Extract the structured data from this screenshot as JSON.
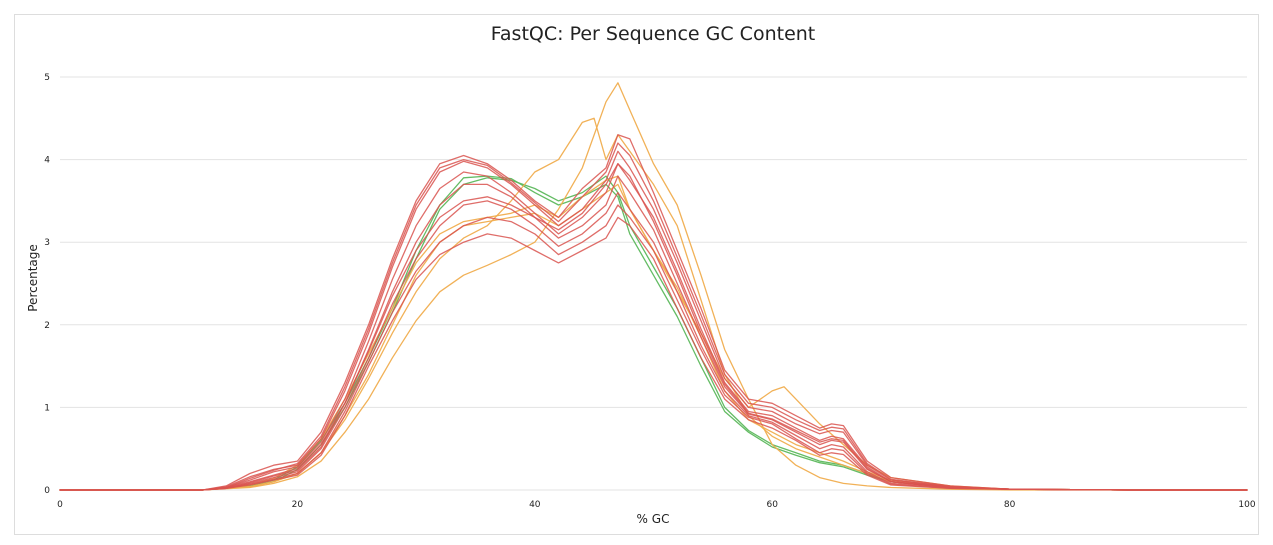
{
  "chart_data": {
    "type": "line",
    "title": "FastQC: Per Sequence GC Content",
    "xlabel": "% GC",
    "ylabel": "Percentage",
    "xlim": [
      0,
      100
    ],
    "ylim": [
      0,
      5
    ],
    "xticks": [
      0,
      20,
      40,
      60,
      80,
      100
    ],
    "yticks": [
      0,
      1,
      2,
      3,
      4,
      5
    ],
    "grid": true,
    "status_colors": {
      "pass": "#5cb85c",
      "warn": "#f0ad4e",
      "fail": "#d9534f"
    },
    "series": [
      {
        "status": "pass",
        "x": [
          0,
          12,
          16,
          18,
          20,
          22,
          24,
          26,
          28,
          30,
          32,
          34,
          36,
          38,
          40,
          42,
          44,
          46,
          47,
          48,
          50,
          52,
          54,
          56,
          58,
          60,
          62,
          64,
          66,
          68,
          70,
          75,
          80,
          90,
          100
        ],
        "values": [
          0,
          0,
          0.06,
          0.12,
          0.28,
          0.6,
          1.05,
          1.6,
          2.2,
          2.9,
          3.45,
          3.78,
          3.8,
          3.77,
          3.6,
          3.45,
          3.55,
          3.7,
          3.55,
          3.1,
          2.6,
          2.1,
          1.5,
          0.95,
          0.7,
          0.52,
          0.42,
          0.33,
          0.28,
          0.18,
          0.1,
          0.03,
          0.01,
          0,
          0
        ]
      },
      {
        "status": "pass",
        "x": [
          0,
          12,
          16,
          18,
          20,
          22,
          24,
          26,
          28,
          30,
          32,
          34,
          36,
          38,
          40,
          42,
          44,
          46,
          47,
          48,
          50,
          52,
          54,
          56,
          58,
          60,
          62,
          64,
          66,
          68,
          70,
          75,
          80,
          90,
          100
        ],
        "values": [
          0,
          0,
          0.05,
          0.1,
          0.25,
          0.55,
          1.0,
          1.55,
          2.15,
          2.8,
          3.4,
          3.7,
          3.78,
          3.75,
          3.65,
          3.5,
          3.6,
          3.8,
          3.6,
          3.2,
          2.7,
          2.2,
          1.6,
          1.0,
          0.72,
          0.55,
          0.45,
          0.35,
          0.3,
          0.2,
          0.1,
          0.03,
          0.01,
          0,
          0
        ]
      },
      {
        "status": "warn",
        "x": [
          0,
          12,
          16,
          18,
          20,
          22,
          24,
          26,
          28,
          30,
          32,
          34,
          36,
          38,
          40,
          42,
          44,
          45,
          46,
          47,
          48,
          50,
          52,
          54,
          56,
          58,
          60,
          62,
          64,
          66,
          68,
          70,
          75,
          80,
          90,
          100
        ],
        "values": [
          0,
          0,
          0.04,
          0.1,
          0.2,
          0.45,
          0.85,
          1.35,
          1.9,
          2.4,
          2.8,
          3.05,
          3.2,
          3.5,
          3.85,
          4.0,
          4.45,
          4.5,
          4.0,
          4.3,
          4.1,
          3.7,
          3.2,
          2.3,
          1.4,
          0.9,
          0.65,
          0.5,
          0.4,
          0.3,
          0.2,
          0.1,
          0.03,
          0.01,
          0,
          0
        ]
      },
      {
        "status": "warn",
        "x": [
          0,
          12,
          16,
          18,
          20,
          22,
          24,
          26,
          28,
          30,
          32,
          34,
          36,
          38,
          40,
          42,
          44,
          46,
          47,
          48,
          50,
          52,
          54,
          56,
          58,
          60,
          62,
          64,
          66,
          68,
          70,
          75,
          80,
          90,
          100
        ],
        "values": [
          0,
          0,
          0.03,
          0.08,
          0.16,
          0.35,
          0.7,
          1.1,
          1.6,
          2.05,
          2.4,
          2.6,
          2.72,
          2.85,
          3.0,
          3.4,
          3.9,
          4.7,
          4.93,
          4.6,
          3.95,
          3.45,
          2.6,
          1.7,
          1.1,
          0.55,
          0.3,
          0.15,
          0.08,
          0.05,
          0.03,
          0.01,
          0,
          0,
          0
        ]
      },
      {
        "status": "warn",
        "x": [
          0,
          12,
          16,
          18,
          20,
          22,
          24,
          26,
          28,
          30,
          32,
          34,
          36,
          38,
          40,
          42,
          44,
          46,
          47,
          48,
          50,
          52,
          54,
          56,
          58,
          60,
          61,
          62,
          64,
          66,
          68,
          70,
          75,
          80,
          90,
          100
        ],
        "values": [
          0,
          0,
          0.06,
          0.14,
          0.3,
          0.62,
          1.1,
          1.65,
          2.2,
          2.75,
          3.1,
          3.25,
          3.3,
          3.35,
          3.45,
          3.3,
          3.55,
          3.75,
          3.8,
          3.4,
          2.9,
          2.4,
          1.9,
          1.35,
          1.0,
          1.2,
          1.25,
          1.1,
          0.8,
          0.55,
          0.3,
          0.15,
          0.05,
          0.01,
          0,
          0
        ]
      },
      {
        "status": "warn",
        "x": [
          0,
          12,
          16,
          18,
          20,
          22,
          24,
          26,
          28,
          30,
          32,
          34,
          36,
          38,
          40,
          42,
          44,
          46,
          47,
          48,
          50,
          52,
          54,
          56,
          58,
          60,
          62,
          64,
          66,
          68,
          70,
          75,
          80,
          90,
          100
        ],
        "values": [
          0,
          0,
          0.04,
          0.1,
          0.2,
          0.45,
          0.9,
          1.4,
          2.0,
          2.6,
          3.0,
          3.2,
          3.25,
          3.3,
          3.35,
          3.2,
          3.4,
          3.6,
          3.7,
          3.4,
          2.9,
          2.45,
          1.85,
          1.2,
          0.85,
          0.7,
          0.55,
          0.45,
          0.35,
          0.22,
          0.12,
          0.04,
          0.01,
          0,
          0
        ]
      },
      {
        "status": "fail",
        "x": [
          0,
          12,
          14,
          16,
          18,
          20,
          22,
          24,
          26,
          28,
          30,
          32,
          34,
          36,
          38,
          40,
          42,
          44,
          46,
          47,
          48,
          50,
          52,
          54,
          56,
          58,
          60,
          62,
          64,
          65,
          66,
          68,
          70,
          75,
          80,
          90,
          100
        ],
        "values": [
          0,
          0,
          0.05,
          0.2,
          0.3,
          0.35,
          0.7,
          1.3,
          2.0,
          2.8,
          3.5,
          3.95,
          4.05,
          3.95,
          3.75,
          3.5,
          3.3,
          3.65,
          3.9,
          4.3,
          4.25,
          3.6,
          2.9,
          2.2,
          1.45,
          1.1,
          1.05,
          0.9,
          0.75,
          0.8,
          0.78,
          0.35,
          0.15,
          0.05,
          0.01,
          0,
          0
        ]
      },
      {
        "status": "fail",
        "x": [
          0,
          12,
          14,
          16,
          18,
          20,
          22,
          24,
          26,
          28,
          30,
          32,
          34,
          36,
          38,
          40,
          42,
          44,
          46,
          47,
          48,
          50,
          52,
          54,
          56,
          58,
          60,
          62,
          64,
          65,
          66,
          68,
          70,
          75,
          80,
          90,
          100
        ],
        "values": [
          0,
          0,
          0.04,
          0.16,
          0.25,
          0.3,
          0.62,
          1.2,
          1.9,
          2.7,
          3.4,
          3.85,
          3.98,
          3.9,
          3.7,
          3.45,
          3.2,
          3.4,
          3.75,
          4.1,
          3.9,
          3.4,
          2.75,
          2.05,
          1.35,
          1.0,
          0.95,
          0.8,
          0.68,
          0.72,
          0.7,
          0.3,
          0.12,
          0.04,
          0.01,
          0,
          0
        ]
      },
      {
        "status": "fail",
        "x": [
          0,
          12,
          14,
          16,
          18,
          20,
          22,
          24,
          26,
          28,
          30,
          32,
          34,
          36,
          38,
          40,
          42,
          44,
          46,
          47,
          48,
          50,
          52,
          54,
          56,
          58,
          60,
          62,
          64,
          65,
          66,
          68,
          70,
          75,
          80,
          90,
          100
        ],
        "values": [
          0,
          0,
          0.03,
          0.12,
          0.22,
          0.28,
          0.58,
          1.1,
          1.8,
          2.55,
          3.2,
          3.65,
          3.85,
          3.8,
          3.6,
          3.35,
          3.1,
          3.3,
          3.6,
          3.95,
          3.75,
          3.3,
          2.65,
          1.95,
          1.3,
          0.95,
          0.9,
          0.75,
          0.6,
          0.65,
          0.62,
          0.28,
          0.1,
          0.03,
          0.01,
          0,
          0
        ]
      },
      {
        "status": "fail",
        "x": [
          0,
          12,
          14,
          16,
          18,
          20,
          22,
          24,
          26,
          28,
          30,
          32,
          34,
          36,
          38,
          40,
          42,
          44,
          46,
          47,
          48,
          50,
          52,
          54,
          56,
          58,
          60,
          62,
          64,
          65,
          66,
          68,
          70,
          75,
          80,
          90,
          100
        ],
        "values": [
          0,
          0,
          0.03,
          0.1,
          0.18,
          0.26,
          0.55,
          1.05,
          1.7,
          2.4,
          3.0,
          3.45,
          3.7,
          3.7,
          3.55,
          3.3,
          3.05,
          3.2,
          3.45,
          3.8,
          3.6,
          3.15,
          2.5,
          1.85,
          1.25,
          0.92,
          0.85,
          0.7,
          0.55,
          0.6,
          0.58,
          0.25,
          0.1,
          0.03,
          0.01,
          0,
          0
        ]
      },
      {
        "status": "fail",
        "x": [
          0,
          12,
          14,
          16,
          18,
          20,
          22,
          24,
          26,
          28,
          30,
          32,
          34,
          36,
          38,
          40,
          42,
          44,
          46,
          47,
          48,
          50,
          52,
          54,
          56,
          58,
          60,
          62,
          64,
          65,
          66,
          68,
          70,
          75,
          80,
          90,
          100
        ],
        "values": [
          0,
          0,
          0.02,
          0.08,
          0.15,
          0.22,
          0.5,
          1.0,
          1.6,
          2.25,
          2.8,
          3.2,
          3.45,
          3.5,
          3.4,
          3.2,
          2.95,
          3.1,
          3.35,
          3.6,
          3.4,
          3.0,
          2.4,
          1.75,
          1.2,
          0.9,
          0.82,
          0.66,
          0.5,
          0.55,
          0.52,
          0.22,
          0.08,
          0.03,
          0.01,
          0,
          0
        ]
      },
      {
        "status": "fail",
        "x": [
          0,
          12,
          14,
          16,
          18,
          20,
          22,
          24,
          26,
          28,
          30,
          32,
          34,
          36,
          38,
          40,
          42,
          44,
          46,
          47,
          48,
          50,
          52,
          54,
          56,
          58,
          60,
          62,
          64,
          65,
          66,
          68,
          70,
          75,
          80,
          90,
          100
        ],
        "values": [
          0,
          0,
          0.02,
          0.07,
          0.13,
          0.2,
          0.45,
          0.95,
          1.55,
          2.15,
          2.65,
          3.0,
          3.2,
          3.3,
          3.25,
          3.1,
          2.85,
          3.0,
          3.2,
          3.45,
          3.3,
          2.9,
          2.3,
          1.7,
          1.15,
          0.88,
          0.8,
          0.62,
          0.45,
          0.5,
          0.48,
          0.2,
          0.07,
          0.02,
          0.01,
          0,
          0
        ]
      },
      {
        "status": "fail",
        "x": [
          0,
          12,
          14,
          16,
          18,
          20,
          22,
          24,
          26,
          28,
          30,
          32,
          34,
          36,
          38,
          40,
          42,
          44,
          46,
          47,
          48,
          50,
          52,
          54,
          56,
          58,
          60,
          62,
          64,
          65,
          66,
          68,
          70,
          75,
          80,
          90,
          100
        ],
        "values": [
          0,
          0,
          0.02,
          0.06,
          0.12,
          0.18,
          0.42,
          0.9,
          1.5,
          2.05,
          2.55,
          2.85,
          3.0,
          3.1,
          3.05,
          2.9,
          2.75,
          2.9,
          3.05,
          3.3,
          3.2,
          2.8,
          2.2,
          1.6,
          1.1,
          0.85,
          0.75,
          0.6,
          0.42,
          0.45,
          0.43,
          0.18,
          0.06,
          0.02,
          0.01,
          0,
          0
        ]
      },
      {
        "status": "fail",
        "x": [
          0,
          12,
          14,
          16,
          18,
          20,
          22,
          24,
          26,
          28,
          30,
          32,
          34,
          36,
          38,
          40,
          42,
          44,
          46,
          47,
          48,
          50,
          52,
          54,
          56,
          58,
          60,
          62,
          64,
          65,
          66,
          68,
          70,
          75,
          80,
          90,
          100
        ],
        "values": [
          0,
          0,
          0.03,
          0.14,
          0.24,
          0.32,
          0.65,
          1.25,
          1.95,
          2.75,
          3.45,
          3.9,
          4.0,
          3.93,
          3.72,
          3.48,
          3.25,
          3.55,
          3.85,
          4.2,
          4.05,
          3.5,
          2.82,
          2.12,
          1.4,
          1.05,
          1.0,
          0.85,
          0.72,
          0.76,
          0.74,
          0.32,
          0.13,
          0.04,
          0.01,
          0,
          0
        ]
      },
      {
        "status": "fail",
        "x": [
          0,
          12,
          14,
          16,
          18,
          20,
          22,
          24,
          26,
          28,
          30,
          32,
          34,
          36,
          38,
          40,
          42,
          44,
          46,
          47,
          48,
          50,
          52,
          54,
          56,
          58,
          60,
          62,
          64,
          65,
          66,
          68,
          70,
          75,
          80,
          90,
          100
        ],
        "values": [
          0,
          0,
          0.02,
          0.09,
          0.17,
          0.24,
          0.52,
          1.05,
          1.68,
          2.35,
          2.9,
          3.3,
          3.5,
          3.55,
          3.45,
          3.3,
          3.15,
          3.35,
          3.7,
          3.95,
          3.8,
          3.25,
          2.6,
          1.9,
          1.28,
          0.93,
          0.86,
          0.72,
          0.58,
          0.62,
          0.6,
          0.26,
          0.1,
          0.03,
          0.01,
          0,
          0
        ]
      }
    ]
  }
}
